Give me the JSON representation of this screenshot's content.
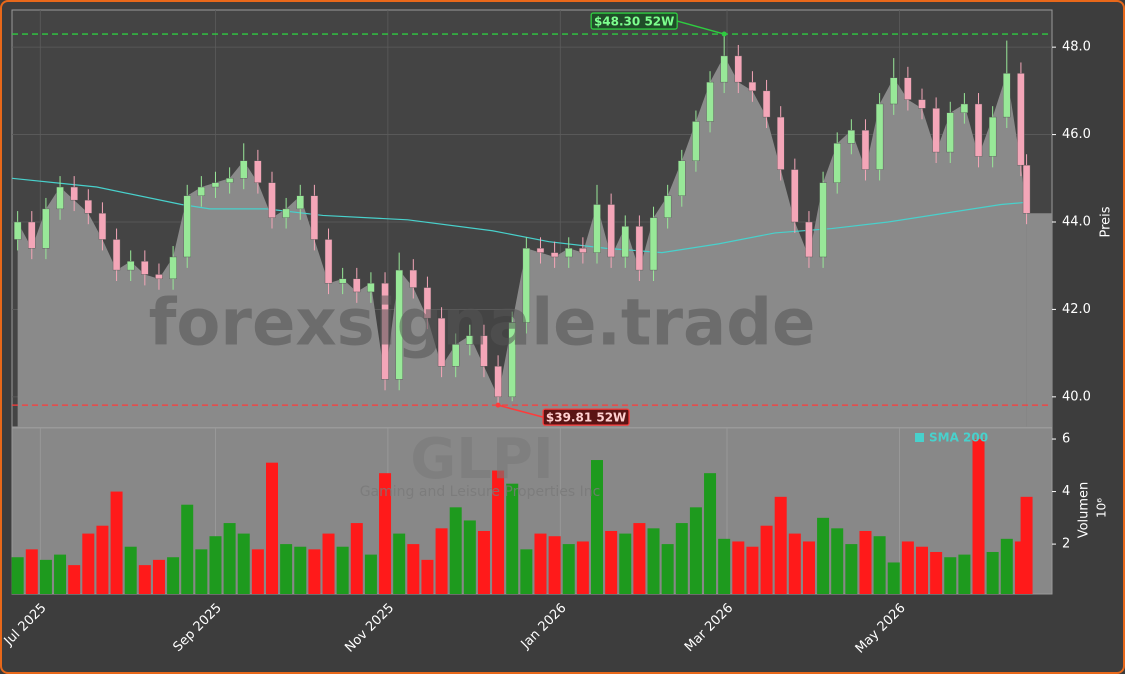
{
  "chart_data": {
    "type": "candlestick",
    "watermark": "forexsignale.trade",
    "ticker": "GLPI",
    "company": "Gaming and Leisure Properties Inc",
    "ylabel": "Preis",
    "x": [
      -8,
      -3,
      2,
      7,
      12,
      17,
      22,
      27,
      32,
      37,
      42,
      47,
      52,
      57,
      62,
      67,
      72,
      77,
      82,
      87,
      92,
      97,
      102,
      107,
      112,
      117,
      122,
      127,
      132,
      137,
      142,
      147,
      152,
      157,
      162,
      167,
      172,
      177,
      182,
      187,
      192,
      197,
      202,
      207,
      212,
      217,
      222,
      227,
      232,
      237,
      242,
      247,
      252,
      257,
      262,
      267,
      272,
      277,
      282,
      287,
      292,
      297,
      302,
      307,
      312,
      317,
      322,
      327,
      332,
      337,
      342,
      347,
      349
    ],
    "open": [
      43.6,
      44.0,
      43.4,
      44.3,
      44.8,
      44.5,
      44.2,
      43.6,
      42.9,
      43.1,
      42.8,
      42.7,
      43.2,
      44.6,
      44.8,
      44.9,
      45.0,
      45.4,
      44.9,
      44.1,
      44.3,
      44.6,
      43.6,
      42.6,
      42.7,
      42.4,
      42.6,
      40.4,
      42.9,
      42.5,
      41.8,
      40.7,
      41.2,
      41.4,
      40.7,
      40.0,
      41.7,
      43.4,
      43.3,
      43.2,
      43.4,
      43.3,
      44.4,
      43.2,
      43.9,
      42.9,
      44.1,
      44.6,
      45.4,
      46.3,
      47.2,
      47.8,
      47.2,
      47.0,
      46.4,
      45.2,
      44.0,
      43.2,
      44.9,
      45.8,
      46.1,
      45.2,
      46.7,
      47.3,
      46.8,
      46.6,
      45.6,
      46.5,
      46.7,
      45.5,
      46.4,
      47.4,
      45.3
    ],
    "high": [
      44.25,
      44.25,
      44.55,
      45.05,
      45.05,
      44.75,
      44.45,
      43.85,
      43.35,
      43.35,
      43.05,
      43.45,
      44.85,
      45.05,
      45.15,
      45.25,
      45.8,
      45.65,
      45.15,
      44.55,
      44.85,
      44.85,
      43.85,
      42.95,
      42.95,
      42.85,
      42.85,
      43.3,
      43.15,
      42.75,
      42.05,
      41.45,
      41.65,
      41.65,
      40.95,
      41.95,
      43.65,
      43.65,
      43.55,
      43.65,
      43.65,
      44.85,
      44.65,
      44.15,
      44.15,
      44.35,
      44.85,
      45.65,
      46.55,
      47.45,
      48.3,
      48.05,
      47.45,
      47.25,
      46.65,
      45.45,
      44.25,
      45.15,
      46.05,
      46.35,
      46.35,
      46.95,
      47.75,
      47.55,
      47.05,
      46.85,
      46.75,
      46.95,
      46.95,
      46.65,
      48.15,
      47.65,
      45.55
    ],
    "low": [
      43.35,
      43.15,
      43.15,
      44.05,
      44.25,
      43.95,
      43.35,
      42.65,
      42.65,
      42.55,
      42.45,
      42.45,
      42.95,
      44.35,
      44.55,
      44.65,
      44.75,
      44.65,
      43.85,
      43.85,
      44.05,
      43.35,
      42.35,
      42.35,
      42.15,
      42.15,
      40.15,
      40.15,
      42.25,
      41.55,
      40.45,
      40.45,
      40.95,
      40.45,
      39.81,
      39.9,
      41.45,
      43.05,
      42.95,
      42.95,
      43.05,
      43.05,
      42.95,
      42.95,
      42.65,
      42.65,
      43.85,
      44.35,
      45.15,
      46.05,
      46.95,
      46.95,
      46.75,
      46.15,
      44.95,
      43.75,
      42.95,
      42.95,
      44.65,
      45.55,
      44.95,
      44.95,
      46.45,
      46.55,
      46.35,
      45.35,
      45.35,
      46.25,
      45.25,
      45.25,
      46.15,
      45.05,
      43.95
    ],
    "close": [
      44.0,
      43.4,
      44.3,
      44.8,
      44.5,
      44.2,
      43.6,
      42.9,
      43.1,
      42.8,
      42.7,
      43.2,
      44.6,
      44.8,
      44.9,
      45.0,
      45.4,
      44.9,
      44.1,
      44.3,
      44.6,
      43.6,
      42.6,
      42.7,
      42.4,
      42.6,
      40.4,
      42.9,
      42.5,
      41.8,
      40.7,
      41.2,
      41.4,
      40.7,
      40.0,
      41.7,
      43.4,
      43.3,
      43.2,
      43.4,
      43.3,
      44.4,
      43.2,
      43.9,
      42.9,
      44.1,
      44.6,
      45.4,
      46.3,
      47.2,
      47.8,
      47.2,
      47.0,
      46.4,
      45.2,
      44.0,
      43.2,
      44.9,
      45.8,
      46.1,
      45.2,
      46.7,
      47.3,
      46.8,
      46.6,
      45.6,
      46.5,
      46.7,
      45.5,
      46.4,
      47.4,
      45.3,
      44.2
    ],
    "colors": {
      "up": "#98e898",
      "down": "#f4a6b8",
      "area": "#8a8a8a",
      "volume_up": "#1e9a1e",
      "volume_down": "#ff1a1a"
    },
    "series": [
      {
        "name": "SMA 200",
        "color": "#48d1cc",
        "x": [
          -10,
          20,
          50,
          60,
          80,
          100,
          130,
          160,
          180,
          200,
          220,
          240,
          260,
          280,
          300,
          320,
          340,
          349
        ],
        "values": [
          45.0,
          44.8,
          44.4,
          44.3,
          44.3,
          44.15,
          44.05,
          43.8,
          43.55,
          43.4,
          43.3,
          43.5,
          43.75,
          43.85,
          44.0,
          44.2,
          44.4,
          44.45
        ]
      }
    ],
    "annotations": [
      {
        "label": "$48.30 52W",
        "value": 48.3,
        "x": 242,
        "color": "#2ecc40"
      },
      {
        "label": "$39.81 52W",
        "value": 39.81,
        "x": 162,
        "color": "#ff3b3b"
      }
    ],
    "xlim": [
      -10,
      358
    ],
    "xticks": [
      {
        "value": 0,
        "label": "Jul 2025"
      },
      {
        "value": 62,
        "label": "Sep 2025"
      },
      {
        "value": 123,
        "label": "Nov 2025"
      },
      {
        "value": 184,
        "label": "Jan 2026"
      },
      {
        "value": 243,
        "label": "Mar 2026"
      },
      {
        "value": 304,
        "label": "May 2026"
      }
    ],
    "ylim": [
      39.31,
      48.85
    ],
    "yticks": [
      {
        "value": 40,
        "label": "40.0"
      },
      {
        "value": 42,
        "label": "42.0"
      },
      {
        "value": 44,
        "label": "44.0"
      },
      {
        "value": 46,
        "label": "46.0"
      },
      {
        "value": 48,
        "label": "48.0"
      }
    ],
    "grid": true,
    "volume": {
      "label": "Volumen",
      "exponent_label": "10⁶",
      "values": [
        1.5,
        1.8,
        1.4,
        1.6,
        1.2,
        2.4,
        2.7,
        4.0,
        1.9,
        1.2,
        1.4,
        1.5,
        3.5,
        1.8,
        2.3,
        2.8,
        2.4,
        1.8,
        5.1,
        2.0,
        1.9,
        1.8,
        2.4,
        1.9,
        2.8,
        1.6,
        4.7,
        2.4,
        2.0,
        1.4,
        2.6,
        3.4,
        2.9,
        2.5,
        4.8,
        4.3,
        1.8,
        2.4,
        2.3,
        2.0,
        2.1,
        5.2,
        2.5,
        2.4,
        2.8,
        2.6,
        2.0,
        2.8,
        3.4,
        4.7,
        2.2,
        2.1,
        1.9,
        2.7,
        3.8,
        2.4,
        2.1,
        3.0,
        2.6,
        2.0,
        2.5,
        2.3,
        1.3,
        2.1,
        1.9,
        1.7,
        1.5,
        1.6,
        6.0,
        1.7,
        2.2,
        2.1,
        3.8
      ],
      "ylim": [
        0.1,
        6.42
      ],
      "yticks": [
        2,
        4,
        6
      ]
    }
  }
}
